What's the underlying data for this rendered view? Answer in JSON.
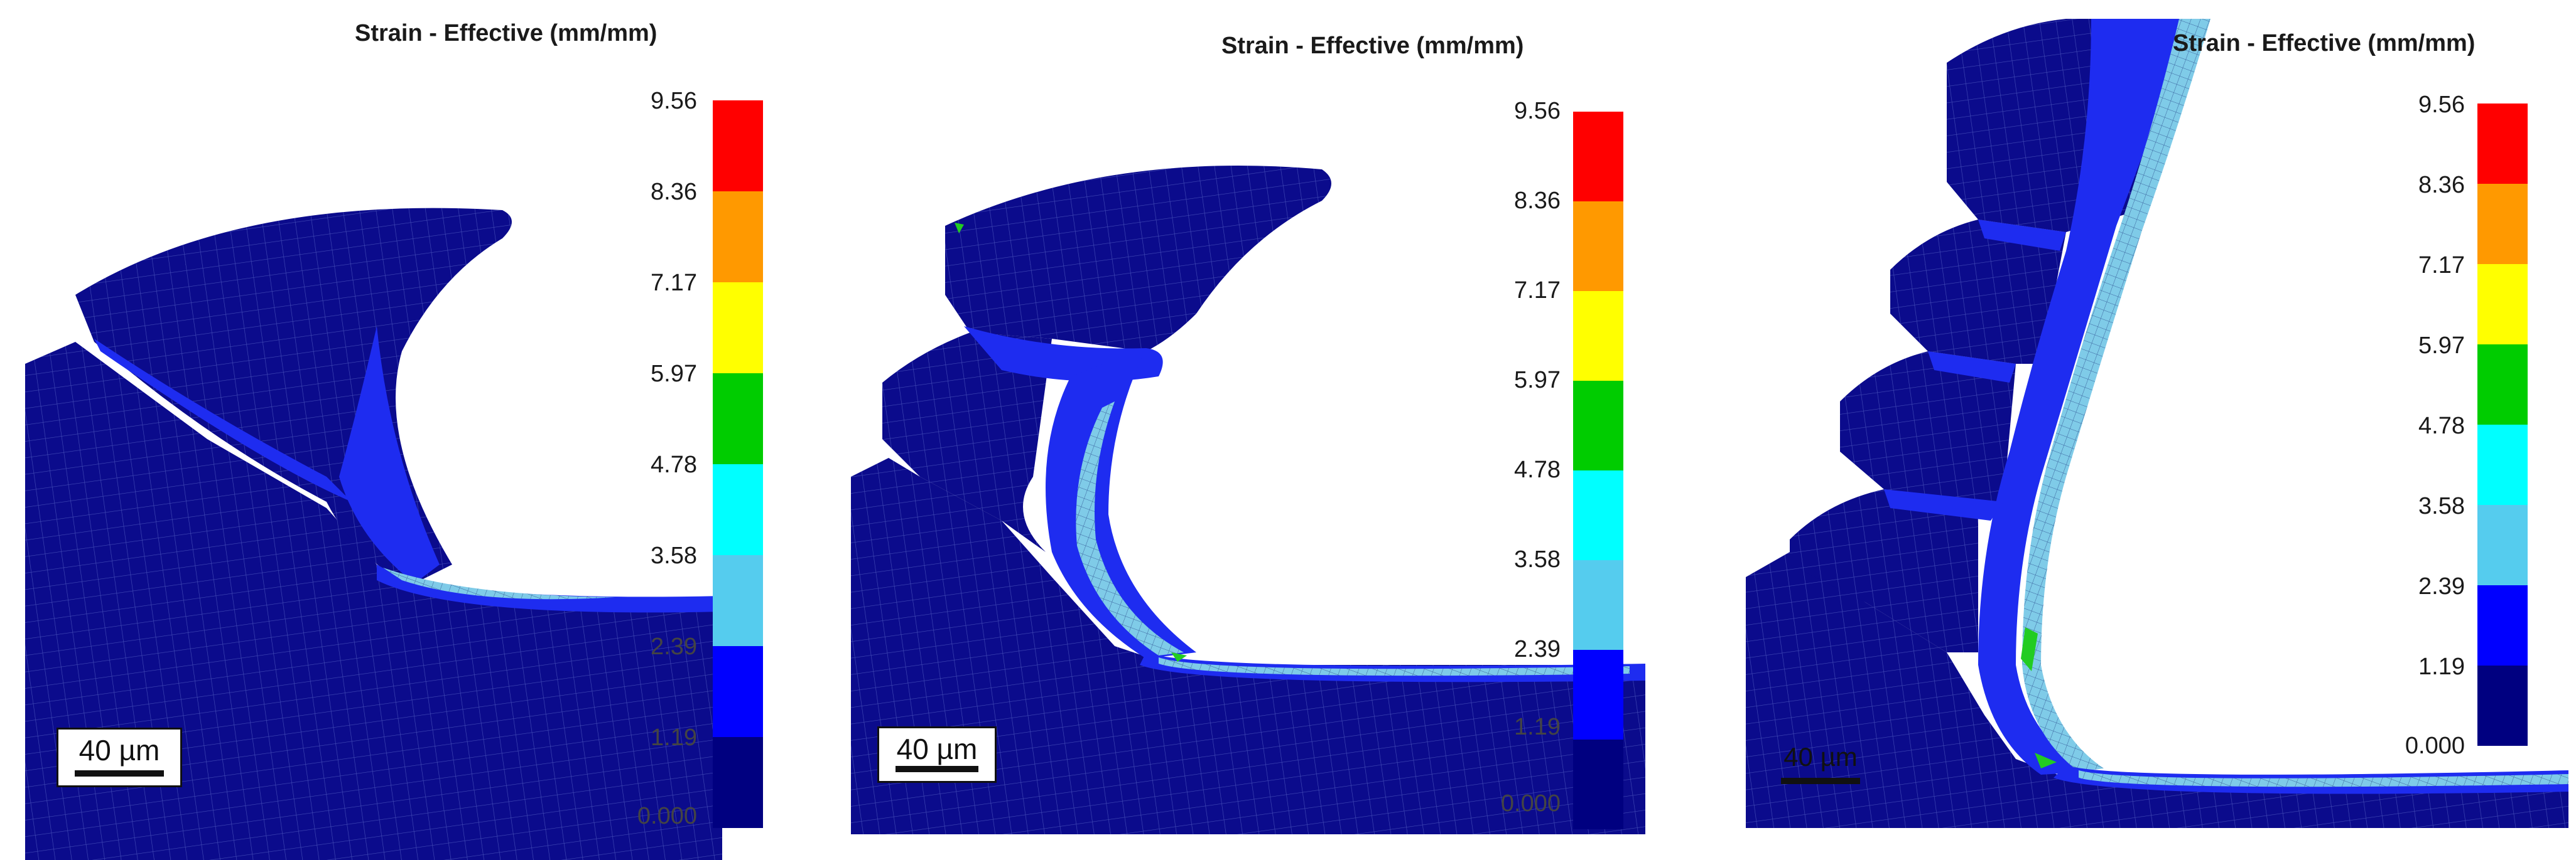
{
  "figure": {
    "panels": [
      {
        "legend_title": "Strain - Effective (mm/mm)",
        "scale_label": "40 µm"
      },
      {
        "legend_title": "Strain - Effective (mm/mm)",
        "scale_label": "40 µm"
      },
      {
        "legend_title": "Strain - Effective (mm/mm)",
        "scale_label": "40 µm"
      }
    ],
    "colorbar": {
      "ticks": [
        "9.56",
        "8.36",
        "7.17",
        "5.97",
        "4.78",
        "3.58",
        "2.39",
        "1.19",
        "0.000"
      ],
      "bands": [
        "#ff0000",
        "#ff9900",
        "#ffff00",
        "#00cc00",
        "#00ffff",
        "#55ccee",
        "#0000ff",
        "#000080"
      ]
    },
    "colors": {
      "base_mesh": "#0b0b8c",
      "mid_strain": "#1e2cf0",
      "high_strain": "#7fcbe8",
      "hot_spot": "#22cc22",
      "mesh_line": "#6f7fd8"
    }
  }
}
